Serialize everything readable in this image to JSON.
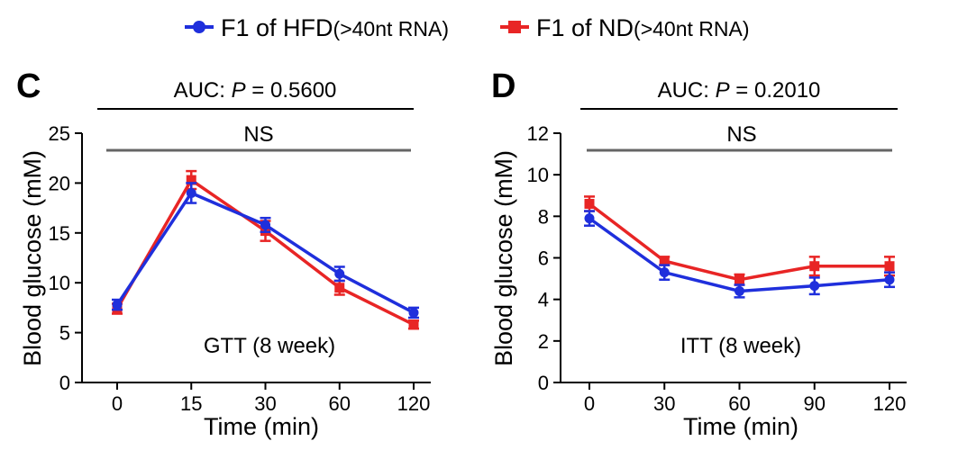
{
  "legend": [
    {
      "name": "F1 of HFD",
      "suffix": "(>40nt RNA)",
      "color": "#1f2fdc",
      "marker": "circle"
    },
    {
      "name": "F1 of ND",
      "suffix": "(>40nt RNA)",
      "color": "#e82525",
      "marker": "square"
    }
  ],
  "colors": {
    "hfd": "#1f2fdc",
    "nd": "#e82525",
    "ns_line": "#666666"
  },
  "chart_data": [
    {
      "type": "line",
      "panel": "C",
      "auc_prefix": "AUC: ",
      "auc_p": "P",
      "auc_value": " = 0.5600",
      "sig_label": "NS",
      "annotation": "GTT (8 week)",
      "xlabel": "Time (min)",
      "ylabel": "Blood glucose (mM)",
      "categories": [
        "0",
        "15",
        "30",
        "60",
        "120"
      ],
      "ylim": [
        0,
        25
      ],
      "yticks": [
        "0",
        "5",
        "10",
        "15",
        "20",
        "25"
      ],
      "series": [
        {
          "name": "F1 of HFD",
          "color": "#1f2fdc",
          "marker": "circle",
          "values": [
            7.8,
            19.0,
            15.8,
            10.9,
            7.0
          ],
          "errors": [
            0.5,
            1.0,
            0.7,
            0.7,
            0.5
          ]
        },
        {
          "name": "F1 of ND",
          "color": "#e82525",
          "marker": "square",
          "values": [
            7.4,
            20.3,
            15.2,
            9.5,
            5.8
          ],
          "errors": [
            0.5,
            0.9,
            1.0,
            0.7,
            0.4
          ]
        }
      ]
    },
    {
      "type": "line",
      "panel": "D",
      "auc_prefix": "AUC: ",
      "auc_p": "P",
      "auc_value": " = 0.2010",
      "sig_label": "NS",
      "annotation": "ITT (8 week)",
      "xlabel": "Time (min)",
      "ylabel": "Blood glucose (mM)",
      "categories": [
        "0",
        "30",
        "60",
        "90",
        "120"
      ],
      "ylim": [
        0,
        12
      ],
      "yticks": [
        "0",
        "2",
        "4",
        "6",
        "8",
        "10",
        "12"
      ],
      "series": [
        {
          "name": "F1 of HFD",
          "color": "#1f2fdc",
          "marker": "circle",
          "values": [
            7.9,
            5.3,
            4.4,
            4.65,
            4.95
          ],
          "errors": [
            0.35,
            0.35,
            0.3,
            0.4,
            0.35
          ]
        },
        {
          "name": "F1 of ND",
          "color": "#e82525",
          "marker": "square",
          "values": [
            8.6,
            5.85,
            4.95,
            5.6,
            5.6
          ],
          "errors": [
            0.35,
            0.2,
            0.25,
            0.45,
            0.45
          ]
        }
      ]
    }
  ]
}
